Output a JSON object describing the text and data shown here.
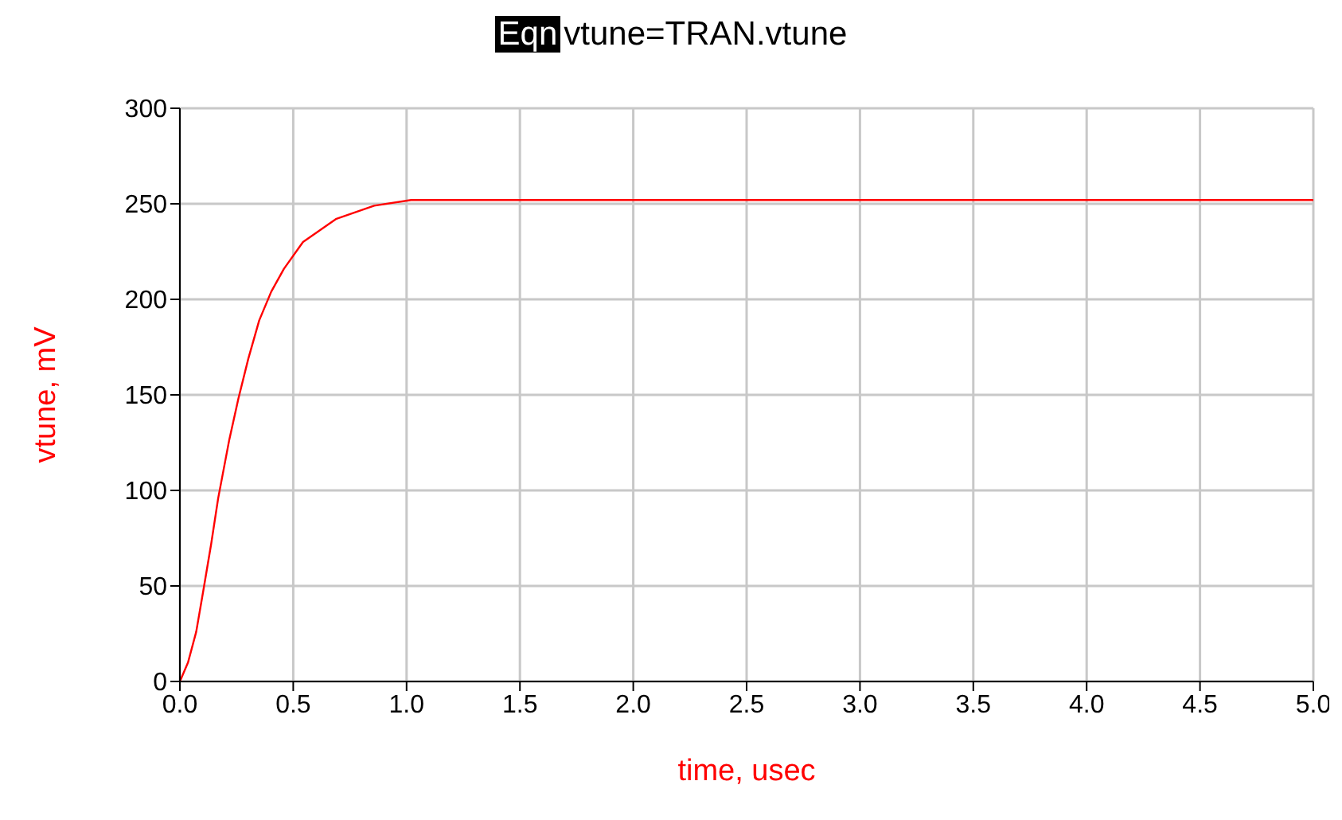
{
  "chart_data": {
    "type": "line",
    "title": "vtune=TRAN.vtune",
    "annotations": [
      "Eqn"
    ],
    "xlabel": "time, usec",
    "ylabel": "vtune, mV",
    "x": [
      0,
      0.036,
      0.072,
      0.104,
      0.138,
      0.169,
      0.217,
      0.258,
      0.302,
      0.35,
      0.403,
      0.459,
      0.543,
      0.688,
      0.857,
      1.02,
      1.3,
      2,
      3,
      4,
      5
    ],
    "series": [
      {
        "color": "#ff0000",
        "values": [
          0,
          10,
          26,
          48,
          72,
          96,
          126,
          148,
          169,
          189,
          204,
          216,
          230,
          242,
          249,
          252,
          252,
          252,
          252,
          252,
          252
        ]
      }
    ],
    "xlim": [
      0,
      5
    ],
    "xticks": [
      {
        "value": 0,
        "label": "0.0"
      },
      {
        "value": 0.5,
        "label": "0.5"
      },
      {
        "value": 1,
        "label": "1.0"
      },
      {
        "value": 1.5,
        "label": "1.5"
      },
      {
        "value": 2,
        "label": "2.0"
      },
      {
        "value": 2.5,
        "label": "2.5"
      },
      {
        "value": 3,
        "label": "3.0"
      },
      {
        "value": 3.5,
        "label": "3.5"
      },
      {
        "value": 4,
        "label": "4.0"
      },
      {
        "value": 4.5,
        "label": "4.5"
      },
      {
        "value": 5,
        "label": "5.0"
      }
    ],
    "ylim": [
      0,
      300
    ],
    "yticks": [
      0,
      50,
      100,
      150,
      200,
      250,
      300
    ],
    "grid": true,
    "legend": false,
    "marker": "none",
    "line_style": "solid"
  }
}
